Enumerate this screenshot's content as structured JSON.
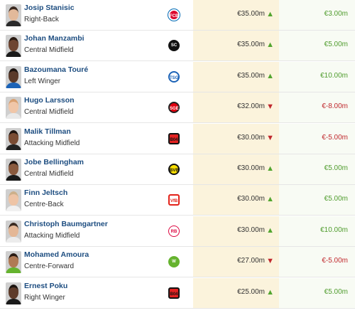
{
  "rows": [
    {
      "name": "Josip Stanisic",
      "position": "Right-Back",
      "club": "bayern",
      "value": "€35.00m",
      "trend": "up",
      "change": "€3.00m",
      "change_sign": "pos",
      "avatar": {
        "skin": "#e2b99a",
        "hair": "#3a2a20",
        "shirt": "#2a2a2a"
      }
    },
    {
      "name": "Johan Manzambi",
      "position": "Central Midfield",
      "club": "freiburg",
      "value": "€35.00m",
      "trend": "up",
      "change": "€5.00m",
      "change_sign": "pos",
      "avatar": {
        "skin": "#6e4531",
        "hair": "#2a1a12",
        "shirt": "#1a1a1a"
      }
    },
    {
      "name": "Bazoumana Touré",
      "position": "Left Winger",
      "club": "hoffenheim",
      "value": "€35.00m",
      "trend": "up",
      "change": "€10.00m",
      "change_sign": "pos",
      "avatar": {
        "skin": "#5a3a2a",
        "hair": "#1c1410",
        "shirt": "#1c63b7"
      }
    },
    {
      "name": "Hugo Larsson",
      "position": "Central Midfield",
      "club": "frankfurt",
      "value": "€32.00m",
      "trend": "down",
      "change": "€-8.00m",
      "change_sign": "neg",
      "avatar": {
        "skin": "#f0c6a8",
        "hair": "#d9a070",
        "shirt": "#e9e9e9"
      }
    },
    {
      "name": "Malik Tillman",
      "position": "Attacking Midfield",
      "club": "leverkusen",
      "value": "€30.00m",
      "trend": "down",
      "change": "€-5.00m",
      "change_sign": "neg",
      "avatar": {
        "skin": "#7a4c34",
        "hair": "#1e1410",
        "shirt": "#222222"
      }
    },
    {
      "name": "Jobe Bellingham",
      "position": "Central Midfield",
      "club": "dortmund",
      "value": "€30.00m",
      "trend": "up",
      "change": "€5.00m",
      "change_sign": "pos",
      "avatar": {
        "skin": "#8a5a3e",
        "hair": "#1e1410",
        "shirt": "#1a1a1a"
      }
    },
    {
      "name": "Finn Jeltsch",
      "position": "Centre-Back",
      "club": "stuttgart",
      "value": "€30.00m",
      "trend": "up",
      "change": "€5.00m",
      "change_sign": "pos",
      "avatar": {
        "skin": "#eec4a6",
        "hair": "#cdb08a",
        "shirt": "#f1f1f1"
      }
    },
    {
      "name": "Christoph Baumgartner",
      "position": "Attacking Midfield",
      "club": "leipzig",
      "value": "€30.00m",
      "trend": "up",
      "change": "€10.00m",
      "change_sign": "pos",
      "avatar": {
        "skin": "#e4b796",
        "hair": "#3a2a20",
        "shirt": "#ececec"
      }
    },
    {
      "name": "Mohamed Amoura",
      "position": "Centre-Forward",
      "club": "wolfsburg",
      "value": "€27.00m",
      "trend": "down",
      "change": "€-5.00m",
      "change_sign": "neg",
      "avatar": {
        "skin": "#b07a55",
        "hair": "#2a1a12",
        "shirt": "#65b32e"
      }
    },
    {
      "name": "Ernest Poku",
      "position": "Right Winger",
      "club": "leverkusen",
      "value": "€25.00m",
      "trend": "up",
      "change": "€5.00m",
      "change_sign": "pos",
      "avatar": {
        "skin": "#5e3b2a",
        "hair": "#1c1410",
        "shirt": "#1a1a1a"
      }
    }
  ],
  "clubs": {
    "bayern": {
      "mark": "FCB",
      "logo": "bayern-munich-logo"
    },
    "freiburg": {
      "mark": "SC",
      "logo": "sc-freiburg-logo"
    },
    "hoffenheim": {
      "mark": "TSG",
      "logo": "hoffenheim-logo"
    },
    "frankfurt": {
      "mark": "SGE",
      "logo": "eintracht-frankfurt-logo"
    },
    "leverkusen": {
      "mark": "B04",
      "logo": "bayer-leverkusen-logo"
    },
    "dortmund": {
      "mark": "BVB",
      "logo": "borussia-dortmund-logo"
    },
    "stuttgart": {
      "mark": "VfB",
      "logo": "vfb-stuttgart-logo"
    },
    "leipzig": {
      "mark": "RB",
      "logo": "rb-leipzig-logo"
    },
    "wolfsburg": {
      "mark": "W",
      "logo": "vfl-wolfsburg-logo"
    }
  },
  "icons": {
    "up": "▲",
    "down": "▼"
  }
}
